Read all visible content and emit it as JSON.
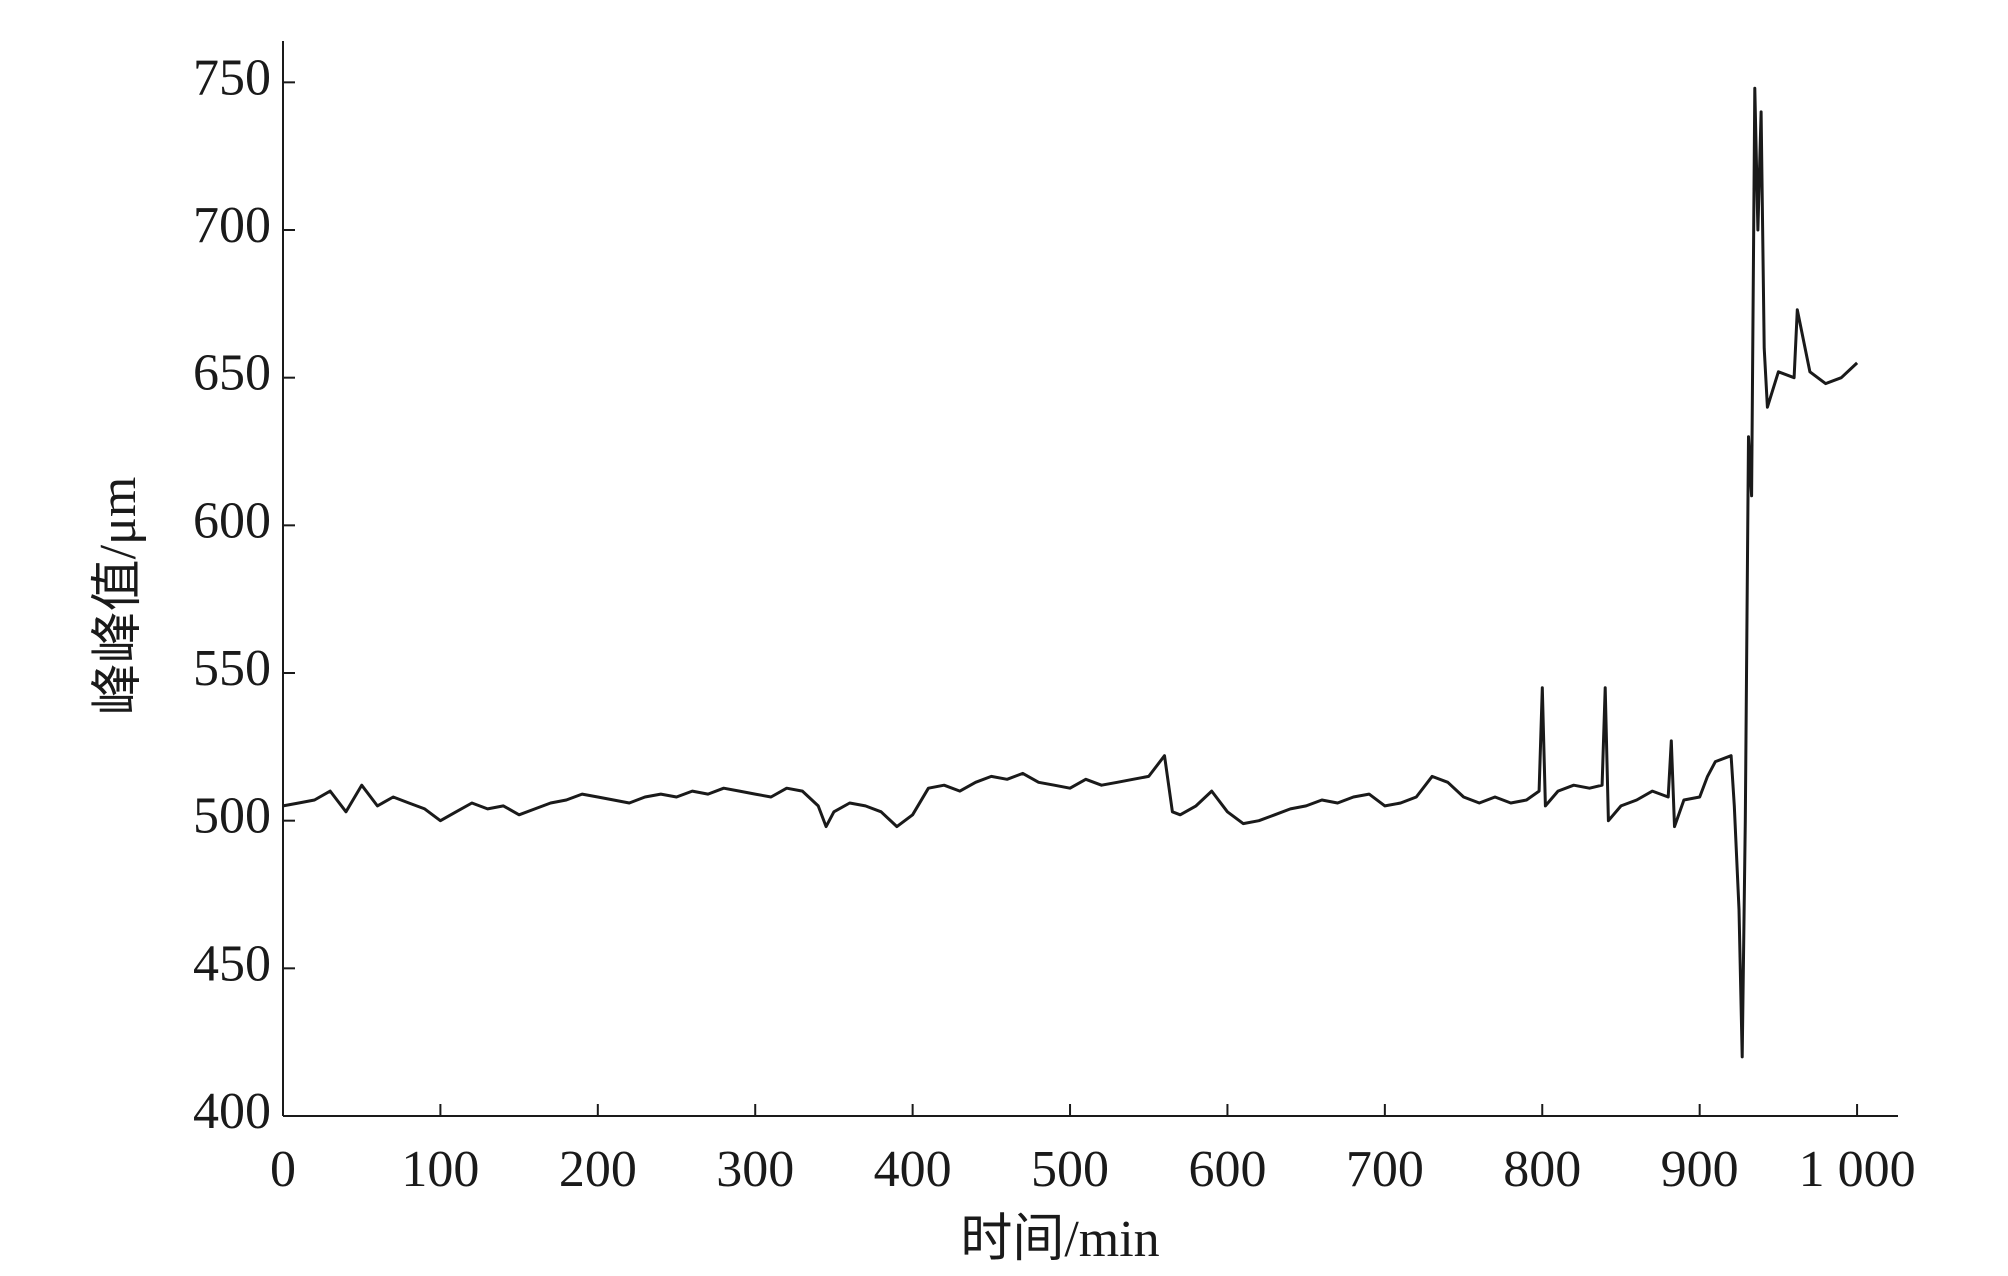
{
  "chart_data": {
    "type": "line",
    "x_label": "时间/min",
    "y_label": "峰峰值/μm",
    "x": [
      0,
      10,
      20,
      30,
      40,
      50,
      60,
      70,
      80,
      90,
      100,
      110,
      120,
      130,
      140,
      150,
      160,
      170,
      180,
      190,
      200,
      210,
      220,
      230,
      240,
      250,
      260,
      270,
      280,
      290,
      300,
      310,
      320,
      330,
      340,
      345,
      350,
      360,
      370,
      380,
      390,
      400,
      410,
      420,
      430,
      440,
      450,
      460,
      470,
      480,
      490,
      500,
      510,
      520,
      530,
      540,
      550,
      560,
      565,
      570,
      580,
      590,
      600,
      610,
      620,
      630,
      640,
      650,
      660,
      670,
      680,
      690,
      700,
      710,
      720,
      730,
      740,
      750,
      760,
      770,
      780,
      790,
      798,
      800,
      802,
      810,
      820,
      830,
      838,
      840,
      842,
      850,
      860,
      870,
      880,
      882,
      884,
      890,
      900,
      905,
      910,
      920,
      922,
      925,
      927,
      929,
      931,
      933,
      935,
      937,
      939,
      941,
      943,
      950,
      960,
      962,
      970,
      980,
      990,
      1000
    ],
    "values": [
      505,
      506,
      507,
      510,
      503,
      512,
      505,
      508,
      506,
      504,
      500,
      503,
      506,
      504,
      505,
      502,
      504,
      506,
      507,
      509,
      508,
      507,
      506,
      508,
      509,
      508,
      510,
      509,
      511,
      510,
      509,
      508,
      511,
      510,
      505,
      498,
      503,
      506,
      505,
      503,
      498,
      502,
      511,
      512,
      510,
      513,
      515,
      514,
      516,
      513,
      512,
      511,
      514,
      512,
      513,
      514,
      515,
      522,
      503,
      502,
      505,
      510,
      503,
      499,
      500,
      502,
      504,
      505,
      507,
      506,
      508,
      509,
      505,
      506,
      508,
      515,
      513,
      508,
      506,
      508,
      506,
      507,
      510,
      545,
      505,
      510,
      512,
      511,
      512,
      545,
      500,
      505,
      507,
      510,
      508,
      527,
      498,
      507,
      508,
      515,
      520,
      522,
      505,
      470,
      420,
      500,
      630,
      610,
      748,
      700,
      740,
      660,
      640,
      652,
      650,
      673,
      652,
      648,
      650,
      655
    ],
    "color": "#1a1a1a",
    "xlim": [
      0,
      1026
    ],
    "ylim": [
      400,
      764
    ],
    "xticks": [
      0,
      100,
      200,
      300,
      400,
      500,
      600,
      700,
      800,
      900,
      {
        "value": 1000,
        "label": "1 000"
      }
    ],
    "yticks": [
      400,
      450,
      500,
      550,
      600,
      650,
      700,
      750
    ]
  }
}
